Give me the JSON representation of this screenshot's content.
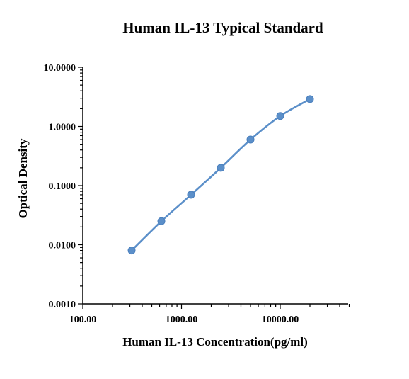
{
  "chart_data": {
    "type": "scatter",
    "title": "Human IL-13 Typical Standard",
    "xlabel": "Human IL-13 Concentration(pg/ml)",
    "ylabel": "Optical Density",
    "xscale": "log",
    "yscale": "log",
    "xlim": [
      100,
      50000
    ],
    "ylim": [
      0.001,
      10
    ],
    "xticks": [
      100,
      1000,
      10000
    ],
    "xtick_labels": [
      "100.00",
      "1000.00",
      "10000.00"
    ],
    "yticks": [
      0.001,
      0.01,
      0.1,
      1,
      10
    ],
    "ytick_labels": [
      "0.0010",
      "0.0100",
      "0.1000",
      "1.0000",
      "10.0000"
    ],
    "grid": false,
    "series": [
      {
        "x": [
          312.5,
          625,
          1250,
          2500,
          5000,
          10000,
          20000
        ],
        "y": [
          0.008,
          0.025,
          0.07,
          0.2,
          0.6,
          1.5,
          2.9
        ],
        "color": "#5b8fc9",
        "fit_line": true
      }
    ]
  }
}
